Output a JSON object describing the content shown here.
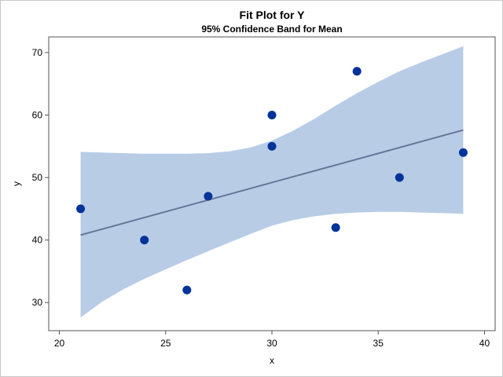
{
  "chart_data": {
    "type": "scatter",
    "title": "Fit Plot for Y",
    "subtitle": "95% Confidence Band for Mean",
    "xlabel": "x",
    "ylabel": "y",
    "xlim": [
      19.5,
      40.5
    ],
    "ylim": [
      25.5,
      72.5
    ],
    "xticks": [
      20,
      25,
      30,
      35,
      40
    ],
    "yticks": [
      30,
      40,
      50,
      60,
      70
    ],
    "grid": false,
    "legend": "none",
    "points": [
      {
        "x": 21,
        "y": 45
      },
      {
        "x": 24,
        "y": 40
      },
      {
        "x": 26,
        "y": 32
      },
      {
        "x": 27,
        "y": 47
      },
      {
        "x": 30,
        "y": 60
      },
      {
        "x": 30,
        "y": 55
      },
      {
        "x": 33,
        "y": 42
      },
      {
        "x": 34,
        "y": 67
      },
      {
        "x": 36,
        "y": 50
      },
      {
        "x": 39,
        "y": 54
      }
    ],
    "fit_line": {
      "x": [
        21,
        39
      ],
      "y": [
        40.8,
        57.6
      ]
    },
    "confidence_band": {
      "x": [
        21,
        22,
        23,
        24,
        25,
        26,
        27,
        28,
        29,
        30,
        31,
        32,
        33,
        34,
        35,
        36,
        37,
        38,
        39
      ],
      "lower": [
        27.6,
        30.1,
        32.1,
        33.8,
        35.3,
        36.8,
        38.2,
        39.6,
        41.0,
        42.3,
        43.2,
        43.8,
        44.2,
        44.4,
        44.5,
        44.5,
        44.4,
        44.3,
        44.2
      ],
      "upper": [
        54.1,
        54.0,
        53.9,
        53.8,
        53.8,
        53.8,
        53.9,
        54.2,
        54.8,
        55.9,
        57.5,
        59.4,
        61.5,
        63.5,
        65.3,
        67.0,
        68.4,
        69.7,
        71.0
      ]
    },
    "colors": {
      "band": "#b8cce6",
      "fit_line": "#667799",
      "points": "#003399",
      "frame": "#555555"
    }
  }
}
